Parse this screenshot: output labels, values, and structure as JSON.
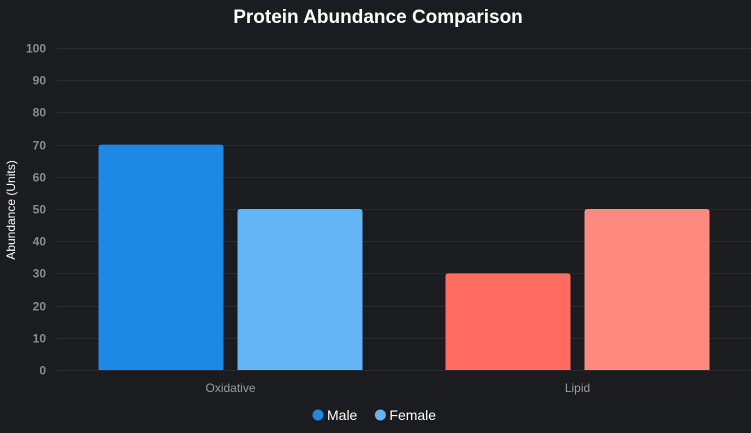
{
  "chart_data": {
    "type": "bar",
    "title": "Protein Abundance Comparison",
    "xlabel": "",
    "ylabel": "Abundance (Units)",
    "ylim": [
      0,
      100
    ],
    "yticks": [
      0,
      10,
      20,
      30,
      40,
      50,
      60,
      70,
      80,
      90,
      100
    ],
    "grid": true,
    "legend_position": "bottom",
    "categories": [
      "Oxidative",
      "Lipid"
    ],
    "series": [
      {
        "name": "Male",
        "values": [
          70,
          30
        ],
        "legend_color": "#1e88e5",
        "bar_colors": [
          "#1e88e5",
          "#ff6b60"
        ]
      },
      {
        "name": "Female",
        "values": [
          50,
          50
        ],
        "legend_color": "#64b5f6",
        "bar_colors": [
          "#64b5f6",
          "#ff8a80"
        ]
      }
    ]
  }
}
